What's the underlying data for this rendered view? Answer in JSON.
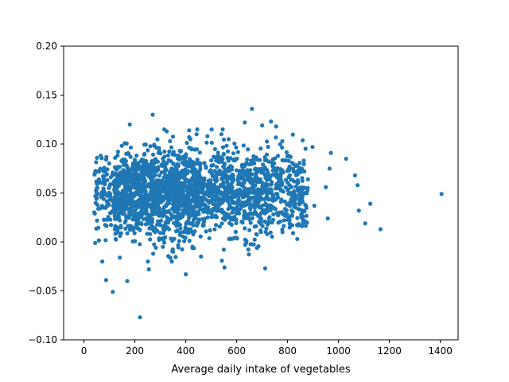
{
  "chart_data": {
    "type": "scatter",
    "title": "",
    "xlabel": "Average daily intake of vegetables",
    "ylabel": "",
    "xlim": [
      -80,
      1470
    ],
    "ylim": [
      -0.1,
      0.2
    ],
    "x_ticks": [
      0,
      200,
      400,
      600,
      800,
      1000,
      1200,
      1400
    ],
    "y_ticks": [
      -0.1,
      -0.05,
      0.0,
      0.05,
      0.1,
      0.15,
      0.2
    ],
    "x_tick_labels": [
      "0",
      "200",
      "400",
      "600",
      "800",
      "1000",
      "1200",
      "1400"
    ],
    "y_tick_labels": [
      "−0.10",
      "−0.05",
      "0.00",
      "0.05",
      "0.10",
      "0.15",
      "0.20"
    ],
    "grid": false,
    "legend": "none",
    "marker_color": "#1f77b4",
    "series": [
      {
        "points_description": "dense cloud of roughly 2500 points; x mostly 50–950, y mostly 0.00–0.10, centered near y≈0.05",
        "points": [
          [
            220,
            -0.077
          ],
          [
            113,
            -0.051
          ],
          [
            87,
            -0.039
          ],
          [
            170,
            -0.04
          ],
          [
            400,
            -0.033
          ],
          [
            552,
            -0.026
          ],
          [
            712,
            -0.027
          ],
          [
            255,
            -0.028
          ],
          [
            141,
            -0.016
          ],
          [
            72,
            -0.02
          ],
          [
            180,
            0.12
          ],
          [
            270,
            0.13
          ],
          [
            660,
            0.136
          ],
          [
            735,
            0.123
          ],
          [
            632,
            0.122
          ],
          [
            445,
            0.115
          ],
          [
            418,
            0.105
          ],
          [
            325,
            0.113
          ],
          [
            755,
            0.118
          ],
          [
            700,
            0.119
          ],
          [
            540,
            0.11
          ],
          [
            485,
            0.108
          ],
          [
            1405,
            0.049
          ],
          [
            1165,
            0.013
          ],
          [
            1125,
            0.039
          ],
          [
            1080,
            0.032
          ],
          [
            1065,
            0.068
          ],
          [
            1105,
            0.019
          ],
          [
            1030,
            0.085
          ],
          [
            970,
            0.091
          ],
          [
            950,
            0.056
          ],
          [
            958,
            0.024
          ],
          [
            898,
            0.097
          ],
          [
            880,
            0.064
          ],
          [
            905,
            0.037
          ],
          [
            838,
            0.003
          ],
          [
            780,
            0.01
          ],
          [
            720,
            0.008
          ],
          [
            650,
            0.012
          ],
          [
            590,
            0.004
          ],
          [
            460,
            -0.015
          ],
          [
            350,
            -0.01
          ],
          [
            310,
            -0.005
          ],
          [
            1075,
            0.058
          ],
          [
            965,
            0.075
          ]
        ]
      }
    ]
  }
}
